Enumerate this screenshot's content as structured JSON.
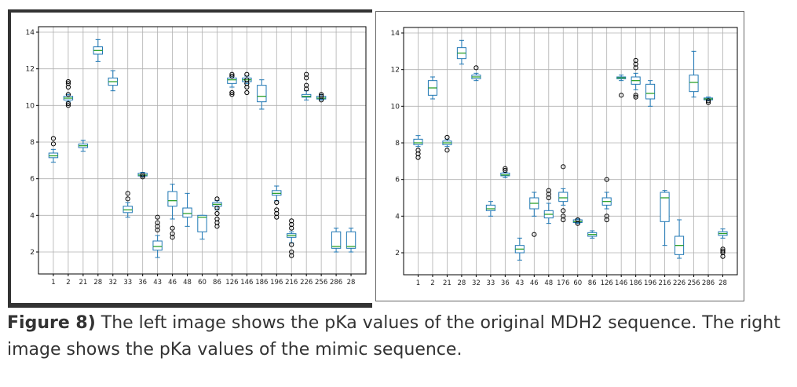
{
  "caption": {
    "label": "Figure 8)",
    "text": " The left image shows the pKa values of the original MDH2 sequence. The right image shows the pKa values of the mimic sequence."
  },
  "colors": {
    "box": "#1f77b4",
    "median": "#2ca02c",
    "grid": "#b0b0b0",
    "outlier": "#000000"
  },
  "chart_data": [
    {
      "type": "boxplot",
      "title": "pKa values - original MDH2 sequence",
      "xlabel": "",
      "ylabel": "",
      "ylim": [
        0.8,
        14.3
      ],
      "yticks": [
        2,
        4,
        6,
        8,
        10,
        12,
        14
      ],
      "grid": true,
      "categories": [
        "1",
        "2",
        "21",
        "28",
        "32",
        "33",
        "36",
        "43",
        "46",
        "48",
        "60",
        "86",
        "126",
        "146",
        "186",
        "196",
        "216",
        "226",
        "256",
        "286",
        "28"
      ],
      "xtick_labels": [
        "1",
        "2",
        "21",
        "28",
        "32",
        "33",
        "36",
        "43",
        "46",
        "48",
        "60",
        "86",
        "126",
        "146",
        "186",
        "196",
        "216",
        "226",
        "256",
        "286",
        "28"
      ],
      "boxes": [
        {
          "whislo": 6.9,
          "q1": 7.15,
          "med": 7.25,
          "q3": 7.4,
          "whishi": 7.6,
          "fliers": [
            7.9,
            8.2
          ]
        },
        {
          "whislo": 10.2,
          "q1": 10.3,
          "med": 10.4,
          "q3": 10.5,
          "whishi": 10.6,
          "fliers": [
            10.0,
            10.1,
            10.6,
            11.0,
            11.2,
            11.3
          ]
        },
        {
          "whislo": 7.5,
          "q1": 7.7,
          "med": 7.8,
          "q3": 7.9,
          "whishi": 8.1,
          "fliers": []
        },
        {
          "whislo": 12.4,
          "q1": 12.8,
          "med": 13.0,
          "q3": 13.2,
          "whishi": 13.6,
          "fliers": []
        },
        {
          "whislo": 10.8,
          "q1": 11.1,
          "med": 11.3,
          "q3": 11.5,
          "whishi": 11.9,
          "fliers": []
        },
        {
          "whislo": 3.9,
          "q1": 4.15,
          "med": 4.3,
          "q3": 4.5,
          "whishi": 4.7,
          "fliers": [
            4.9,
            5.2
          ]
        },
        {
          "whislo": 6.1,
          "q1": 6.15,
          "med": 6.2,
          "q3": 6.3,
          "whishi": 6.35,
          "fliers": [
            6.1,
            6.2
          ]
        },
        {
          "whislo": 1.7,
          "q1": 2.1,
          "med": 2.3,
          "q3": 2.6,
          "whishi": 2.9,
          "fliers": [
            3.2,
            3.4,
            3.6,
            3.9
          ]
        },
        {
          "whislo": 3.8,
          "q1": 4.5,
          "med": 4.8,
          "q3": 5.3,
          "whishi": 5.7,
          "fliers": [
            2.8,
            3.0,
            3.3
          ]
        },
        {
          "whislo": 3.4,
          "q1": 3.9,
          "med": 4.1,
          "q3": 4.4,
          "whishi": 5.2,
          "fliers": []
        },
        {
          "whislo": 2.7,
          "q1": 3.1,
          "med": 3.9,
          "q3": 4.0,
          "whishi": 4.0,
          "fliers": []
        },
        {
          "whislo": 4.3,
          "q1": 4.5,
          "med": 4.6,
          "q3": 4.7,
          "whishi": 4.8,
          "fliers": [
            3.4,
            3.6,
            3.8,
            4.1,
            4.4,
            4.9
          ]
        },
        {
          "whislo": 11.0,
          "q1": 11.2,
          "med": 11.4,
          "q3": 11.5,
          "whishi": 11.6,
          "fliers": [
            10.6,
            10.7,
            11.6,
            11.7
          ]
        },
        {
          "whislo": 11.2,
          "q1": 11.3,
          "med": 11.4,
          "q3": 11.5,
          "whishi": 11.6,
          "fliers": [
            10.7,
            11.0,
            11.2,
            11.4,
            11.7
          ]
        },
        {
          "whislo": 9.8,
          "q1": 10.2,
          "med": 10.5,
          "q3": 11.1,
          "whishi": 11.4,
          "fliers": []
        },
        {
          "whislo": 4.8,
          "q1": 5.1,
          "med": 5.2,
          "q3": 5.35,
          "whishi": 5.6,
          "fliers": [
            3.9,
            4.1,
            4.3,
            4.7
          ]
        },
        {
          "whislo": 2.5,
          "q1": 2.8,
          "med": 2.9,
          "q3": 3.0,
          "whishi": 3.1,
          "fliers": [
            1.8,
            2.0,
            2.4,
            3.3,
            3.5,
            3.7
          ]
        },
        {
          "whislo": 10.3,
          "q1": 10.45,
          "med": 10.5,
          "q3": 10.6,
          "whishi": 10.8,
          "fliers": [
            10.9,
            11.1,
            11.5,
            11.7
          ]
        },
        {
          "whislo": 10.3,
          "q1": 10.35,
          "med": 10.4,
          "q3": 10.5,
          "whishi": 10.6,
          "fliers": [
            10.3,
            10.5,
            10.6
          ]
        },
        {
          "whislo": 2.0,
          "q1": 2.2,
          "med": 2.3,
          "q3": 3.1,
          "whishi": 3.3,
          "fliers": []
        },
        {
          "whislo": 2.0,
          "q1": 2.2,
          "med": 2.3,
          "q3": 3.1,
          "whishi": 3.3,
          "fliers": []
        }
      ]
    },
    {
      "type": "boxplot",
      "title": "pKa values - mimic sequence",
      "xlabel": "",
      "ylabel": "",
      "ylim": [
        0.8,
        14.3
      ],
      "yticks": [
        2,
        4,
        6,
        8,
        10,
        12,
        14
      ],
      "grid": true,
      "categories": [
        "1",
        "2",
        "21",
        "28",
        "32",
        "33",
        "36",
        "43",
        "46",
        "48",
        "176",
        "60",
        "86",
        "126",
        "146",
        "186",
        "196",
        "216",
        "226",
        "256",
        "286",
        "28"
      ],
      "xtick_labels": [
        "1",
        "2",
        "21",
        "28",
        "32",
        "33",
        "36",
        "43",
        "46",
        "48",
        "176",
        "60",
        "86",
        "126",
        "146",
        "186",
        "196",
        "216",
        "226",
        "256",
        "286",
        "28"
      ],
      "boxes": [
        {
          "whislo": 7.8,
          "q1": 7.9,
          "med": 8.0,
          "q3": 8.2,
          "whishi": 8.4,
          "fliers": [
            7.2,
            7.4,
            7.6
          ]
        },
        {
          "whislo": 10.4,
          "q1": 10.6,
          "med": 11.0,
          "q3": 11.4,
          "whishi": 11.6,
          "fliers": []
        },
        {
          "whislo": 7.8,
          "q1": 7.9,
          "med": 8.0,
          "q3": 8.1,
          "whishi": 8.2,
          "fliers": [
            7.6,
            8.3
          ]
        },
        {
          "whislo": 12.3,
          "q1": 12.6,
          "med": 12.9,
          "q3": 13.2,
          "whishi": 13.6,
          "fliers": []
        },
        {
          "whislo": 11.4,
          "q1": 11.5,
          "med": 11.6,
          "q3": 11.7,
          "whishi": 11.8,
          "fliers": [
            12.1
          ]
        },
        {
          "whislo": 4.0,
          "q1": 4.3,
          "med": 4.4,
          "q3": 4.6,
          "whishi": 4.8,
          "fliers": []
        },
        {
          "whislo": 6.1,
          "q1": 6.2,
          "med": 6.25,
          "q3": 6.35,
          "whishi": 6.4,
          "fliers": [
            6.5,
            6.6
          ]
        },
        {
          "whislo": 1.6,
          "q1": 2.0,
          "med": 2.2,
          "q3": 2.4,
          "whishi": 2.8,
          "fliers": []
        },
        {
          "whislo": 4.0,
          "q1": 4.4,
          "med": 4.7,
          "q3": 5.0,
          "whishi": 5.3,
          "fliers": [
            3.0
          ]
        },
        {
          "whislo": 3.6,
          "q1": 3.9,
          "med": 4.1,
          "q3": 4.3,
          "whishi": 4.7,
          "fliers": [
            5.0,
            5.2,
            5.4
          ]
        },
        {
          "whislo": 4.6,
          "q1": 4.8,
          "med": 5.0,
          "q3": 5.3,
          "whishi": 5.5,
          "fliers": [
            3.8,
            4.0,
            4.3,
            6.7
          ]
        },
        {
          "whislo": 3.6,
          "q1": 3.65,
          "med": 3.7,
          "q3": 3.8,
          "whishi": 3.85,
          "fliers": [
            3.6,
            3.8
          ]
        },
        {
          "whislo": 2.8,
          "q1": 2.9,
          "med": 3.0,
          "q3": 3.1,
          "whishi": 3.2,
          "fliers": []
        },
        {
          "whislo": 4.4,
          "q1": 4.6,
          "med": 4.8,
          "q3": 5.0,
          "whishi": 5.3,
          "fliers": [
            3.8,
            4.0,
            6.0
          ]
        },
        {
          "whislo": 11.4,
          "q1": 11.5,
          "med": 11.55,
          "q3": 11.6,
          "whishi": 11.7,
          "fliers": [
            10.6
          ]
        },
        {
          "whislo": 10.9,
          "q1": 11.2,
          "med": 11.4,
          "q3": 11.6,
          "whishi": 11.8,
          "fliers": [
            10.5,
            10.6,
            12.1,
            12.3,
            12.5
          ]
        },
        {
          "whislo": 10.0,
          "q1": 10.4,
          "med": 10.7,
          "q3": 11.2,
          "whishi": 11.4,
          "fliers": []
        },
        {
          "whislo": 2.4,
          "q1": 3.7,
          "med": 5.0,
          "q3": 5.3,
          "whishi": 5.4,
          "fliers": []
        },
        {
          "whislo": 1.7,
          "q1": 1.9,
          "med": 2.4,
          "q3": 2.9,
          "whishi": 3.8,
          "fliers": []
        },
        {
          "whislo": 10.5,
          "q1": 10.8,
          "med": 11.3,
          "q3": 11.7,
          "whishi": 13.0,
          "fliers": []
        },
        {
          "whislo": 10.3,
          "q1": 10.35,
          "med": 10.4,
          "q3": 10.45,
          "whishi": 10.5,
          "fliers": [
            10.2,
            10.3
          ]
        },
        {
          "whislo": 2.8,
          "q1": 2.95,
          "med": 3.05,
          "q3": 3.15,
          "whishi": 3.3,
          "fliers": [
            1.8,
            2.0,
            2.1,
            2.2
          ]
        }
      ]
    }
  ]
}
